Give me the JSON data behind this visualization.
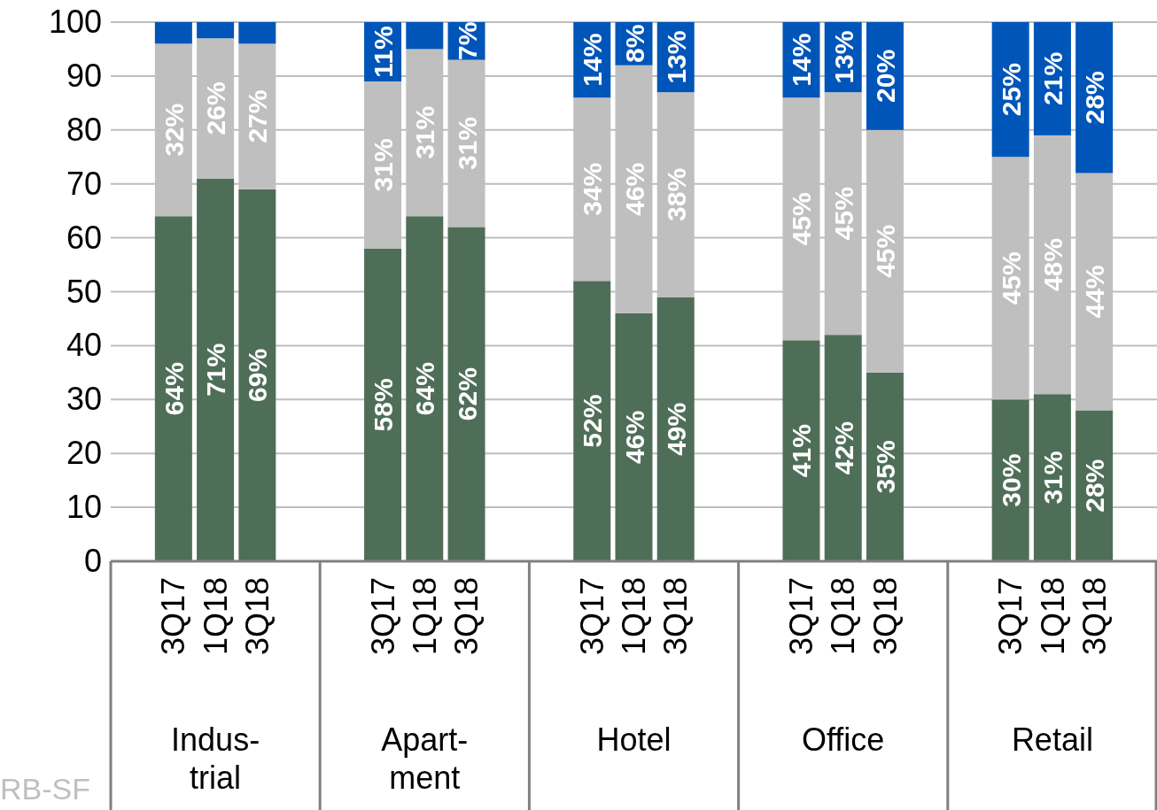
{
  "chart_data": {
    "type": "bar",
    "stacked": true,
    "categories": [
      "3Q17",
      "1Q18",
      "3Q18",
      null,
      null,
      "3Q17",
      "1Q18",
      "3Q18",
      null,
      null,
      "3Q17",
      "1Q18",
      "3Q18",
      null,
      null,
      "3Q17",
      "1Q18",
      "3Q18",
      null,
      null,
      "3Q17",
      "1Q18",
      "3Q18"
    ],
    "series": [
      {
        "color": "#4f6e58",
        "values": [
          64,
          71,
          69,
          null,
          null,
          58,
          64,
          62,
          null,
          null,
          52,
          46,
          49,
          null,
          null,
          41,
          42,
          35,
          null,
          null,
          30,
          31,
          28
        ],
        "value_labels": [
          "64%",
          "71%",
          "69%",
          null,
          null,
          "58%",
          "64%",
          "62%",
          null,
          null,
          "52%",
          "46%",
          "49%",
          null,
          null,
          "41%",
          "42%",
          "35%",
          null,
          null,
          "30%",
          "31%",
          "28%"
        ]
      },
      {
        "color": "#bfbfbf",
        "values": [
          32,
          26,
          27,
          null,
          null,
          31,
          31,
          31,
          null,
          null,
          34,
          46,
          38,
          null,
          null,
          45,
          45,
          45,
          null,
          null,
          45,
          48,
          44
        ],
        "value_labels": [
          "32%",
          "26%",
          "27%",
          null,
          null,
          "31%",
          "31%",
          "31%",
          null,
          null,
          "34%",
          "46%",
          "38%",
          null,
          null,
          "45%",
          "45%",
          "45%",
          null,
          null,
          "45%",
          "48%",
          "44%"
        ]
      },
      {
        "color": "#0055b8",
        "values": [
          4,
          3,
          4,
          null,
          null,
          11,
          5,
          7,
          null,
          null,
          14,
          8,
          13,
          null,
          null,
          14,
          13,
          20,
          null,
          null,
          25,
          21,
          28
        ],
        "value_labels": [
          null,
          null,
          null,
          null,
          null,
          "11%",
          null,
          "7%",
          null,
          null,
          "14%",
          "8%",
          "13%",
          null,
          null,
          "14%",
          "13%",
          "20%",
          null,
          null,
          "25%",
          "21%",
          "28%"
        ]
      }
    ],
    "ylim": [
      0,
      100
    ],
    "yticks": [
      0,
      10,
      20,
      30,
      40,
      50,
      60,
      70,
      80,
      90,
      100
    ],
    "grid": "y",
    "legend": false,
    "annotations": [
      "Indus-\ntrial",
      "Apart-\nment",
      "Hotel",
      "Office",
      "Retail",
      "RB-SF"
    ]
  }
}
